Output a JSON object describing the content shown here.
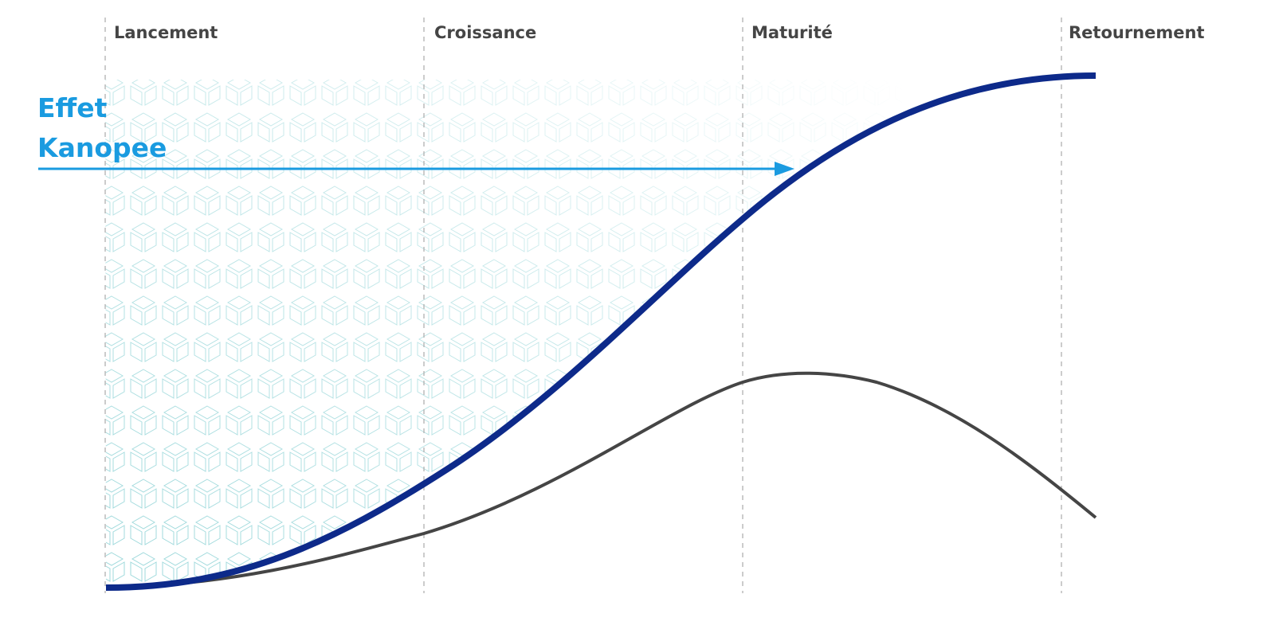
{
  "phases": [
    "Lancement",
    "Croissance",
    "Maturité",
    "Retournement"
  ],
  "effect": {
    "lines": [
      "Effet",
      "Kanopee"
    ]
  }
}
